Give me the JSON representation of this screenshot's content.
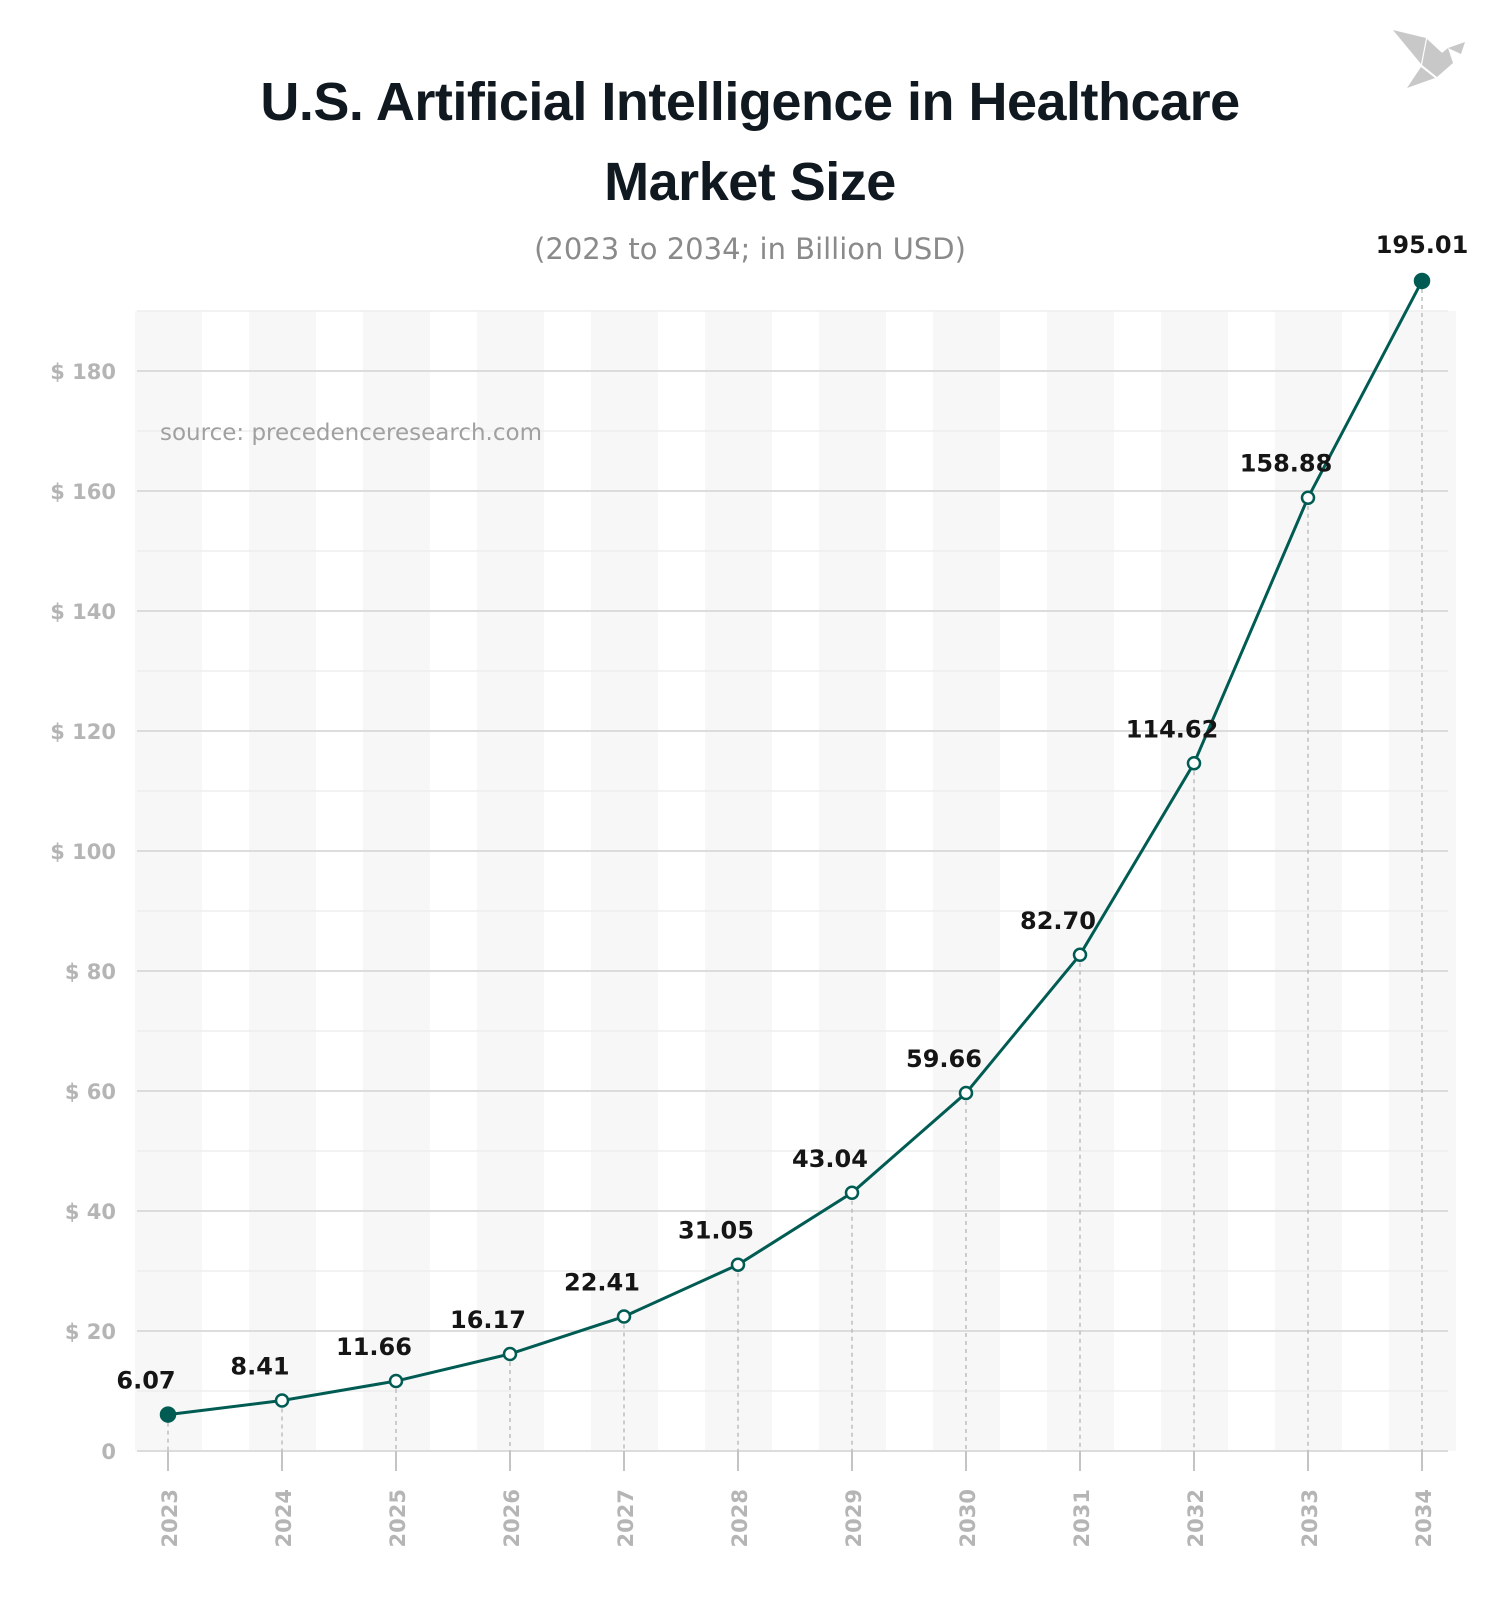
{
  "header": {
    "title_line1": "U.S. Artificial Intelligence in Healthcare",
    "title_line2": "Market Size",
    "subtitle": "(2023 to 2034; in Billion USD)",
    "logo_icon": "origami-bird-icon"
  },
  "chart_data": {
    "type": "line",
    "title": "U.S. Artificial Intelligence in Healthcare Market Size",
    "subtitle": "(2023 to 2034; in Billion USD)",
    "annotation": "source: precedenceresearch.com",
    "categories": [
      "2023",
      "2024",
      "2025",
      "2026",
      "2027",
      "2028",
      "2029",
      "2030",
      "2031",
      "2032",
      "2033",
      "2034"
    ],
    "values": [
      6.07,
      8.41,
      11.66,
      16.17,
      22.41,
      31.05,
      43.04,
      59.66,
      82.7,
      114.62,
      158.88,
      195.01
    ],
    "data_labels": [
      "6.07",
      "8.41",
      "11.66",
      "16.17",
      "22.41",
      "31.05",
      "43.04",
      "59.66",
      "82.70",
      "114.62",
      "158.88",
      "195.01"
    ],
    "y_ticks": [
      0,
      20,
      40,
      60,
      80,
      100,
      120,
      140,
      160,
      180
    ],
    "y_tick_labels": [
      "0",
      "$ 20",
      "$ 40",
      "$ 60",
      "$ 80",
      "$ 100",
      "$ 120",
      "$ 140",
      "$ 160",
      "$ 180"
    ],
    "ylim": [
      0,
      190
    ],
    "grid": true,
    "line_color": "#005c53",
    "tick_color": "#b5b5b5",
    "band_color": "#f7f7f7"
  }
}
